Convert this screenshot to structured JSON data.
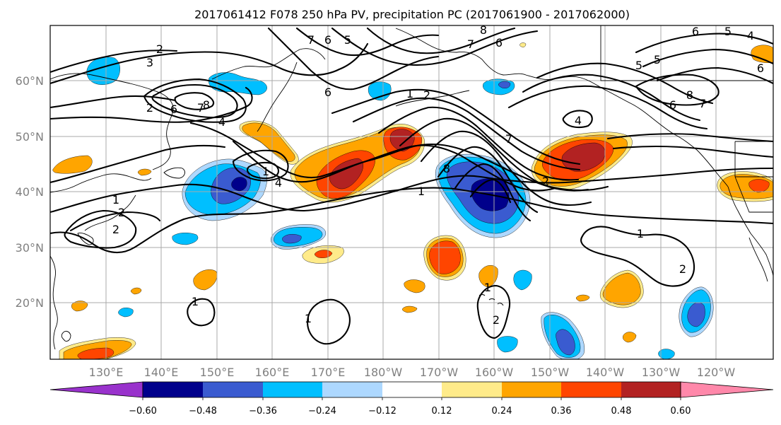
{
  "title": "2017061412 F078 250 hPa PV, precipitation PC (2017061900 - 2017062000)",
  "map": {
    "latitude_labels": [
      "60°N",
      "50°N",
      "40°N",
      "30°N",
      "20°N"
    ],
    "longitude_labels": [
      "130°E",
      "140°E",
      "150°E",
      "160°E",
      "170°E",
      "180°W",
      "170°W",
      "160°W",
      "150°W",
      "140°W",
      "130°W",
      "120°W"
    ],
    "gridlines": true,
    "pv_contour_labels": [
      {
        "text": "2"
      },
      {
        "text": "3"
      },
      {
        "text": "7"
      },
      {
        "text": "6"
      },
      {
        "text": "5"
      },
      {
        "text": "8"
      },
      {
        "text": "7"
      },
      {
        "text": "6"
      },
      {
        "text": "6"
      },
      {
        "text": "5"
      },
      {
        "text": "4"
      },
      {
        "text": "5"
      },
      {
        "text": "5"
      },
      {
        "text": "6"
      },
      {
        "text": "7"
      },
      {
        "text": "8"
      },
      {
        "text": "6"
      },
      {
        "text": "4"
      },
      {
        "text": "1"
      },
      {
        "text": "2"
      },
      {
        "text": "6"
      },
      {
        "text": "4"
      },
      {
        "text": "8"
      },
      {
        "text": "6"
      },
      {
        "text": "7"
      },
      {
        "text": "2"
      },
      {
        "text": "4"
      },
      {
        "text": "1"
      },
      {
        "text": "2"
      },
      {
        "text": "7"
      },
      {
        "text": "8"
      },
      {
        "text": "1"
      },
      {
        "text": "2"
      },
      {
        "text": "1"
      },
      {
        "text": "2"
      },
      {
        "text": "1"
      },
      {
        "text": "1"
      },
      {
        "text": "2"
      },
      {
        "text": "1"
      },
      {
        "text": "1"
      },
      {
        "text": "2"
      }
    ]
  },
  "colorbar": {
    "tick_labels": [
      "−0.60",
      "−0.48",
      "−0.36",
      "−0.24",
      "−0.12",
      "0.12",
      "0.24",
      "0.36",
      "0.48",
      "0.60"
    ],
    "colors": [
      "#9932cc",
      "#00008b",
      "#3a5bd0",
      "#00bfff",
      "#add8ff",
      "#ffffff",
      "#ffeb8a",
      "#ffa500",
      "#ff4500",
      "#b22222",
      "#ff88aa"
    ]
  },
  "shading_colors": {
    "neg_strong": "#00008b",
    "neg_medium": "#3a5bd0",
    "neg_light": "#00bfff",
    "neg_faint": "#add8ff",
    "pos_faint": "#ffeb8a",
    "pos_light": "#ffa500",
    "pos_medium": "#ff4500",
    "pos_strong": "#b22222"
  }
}
